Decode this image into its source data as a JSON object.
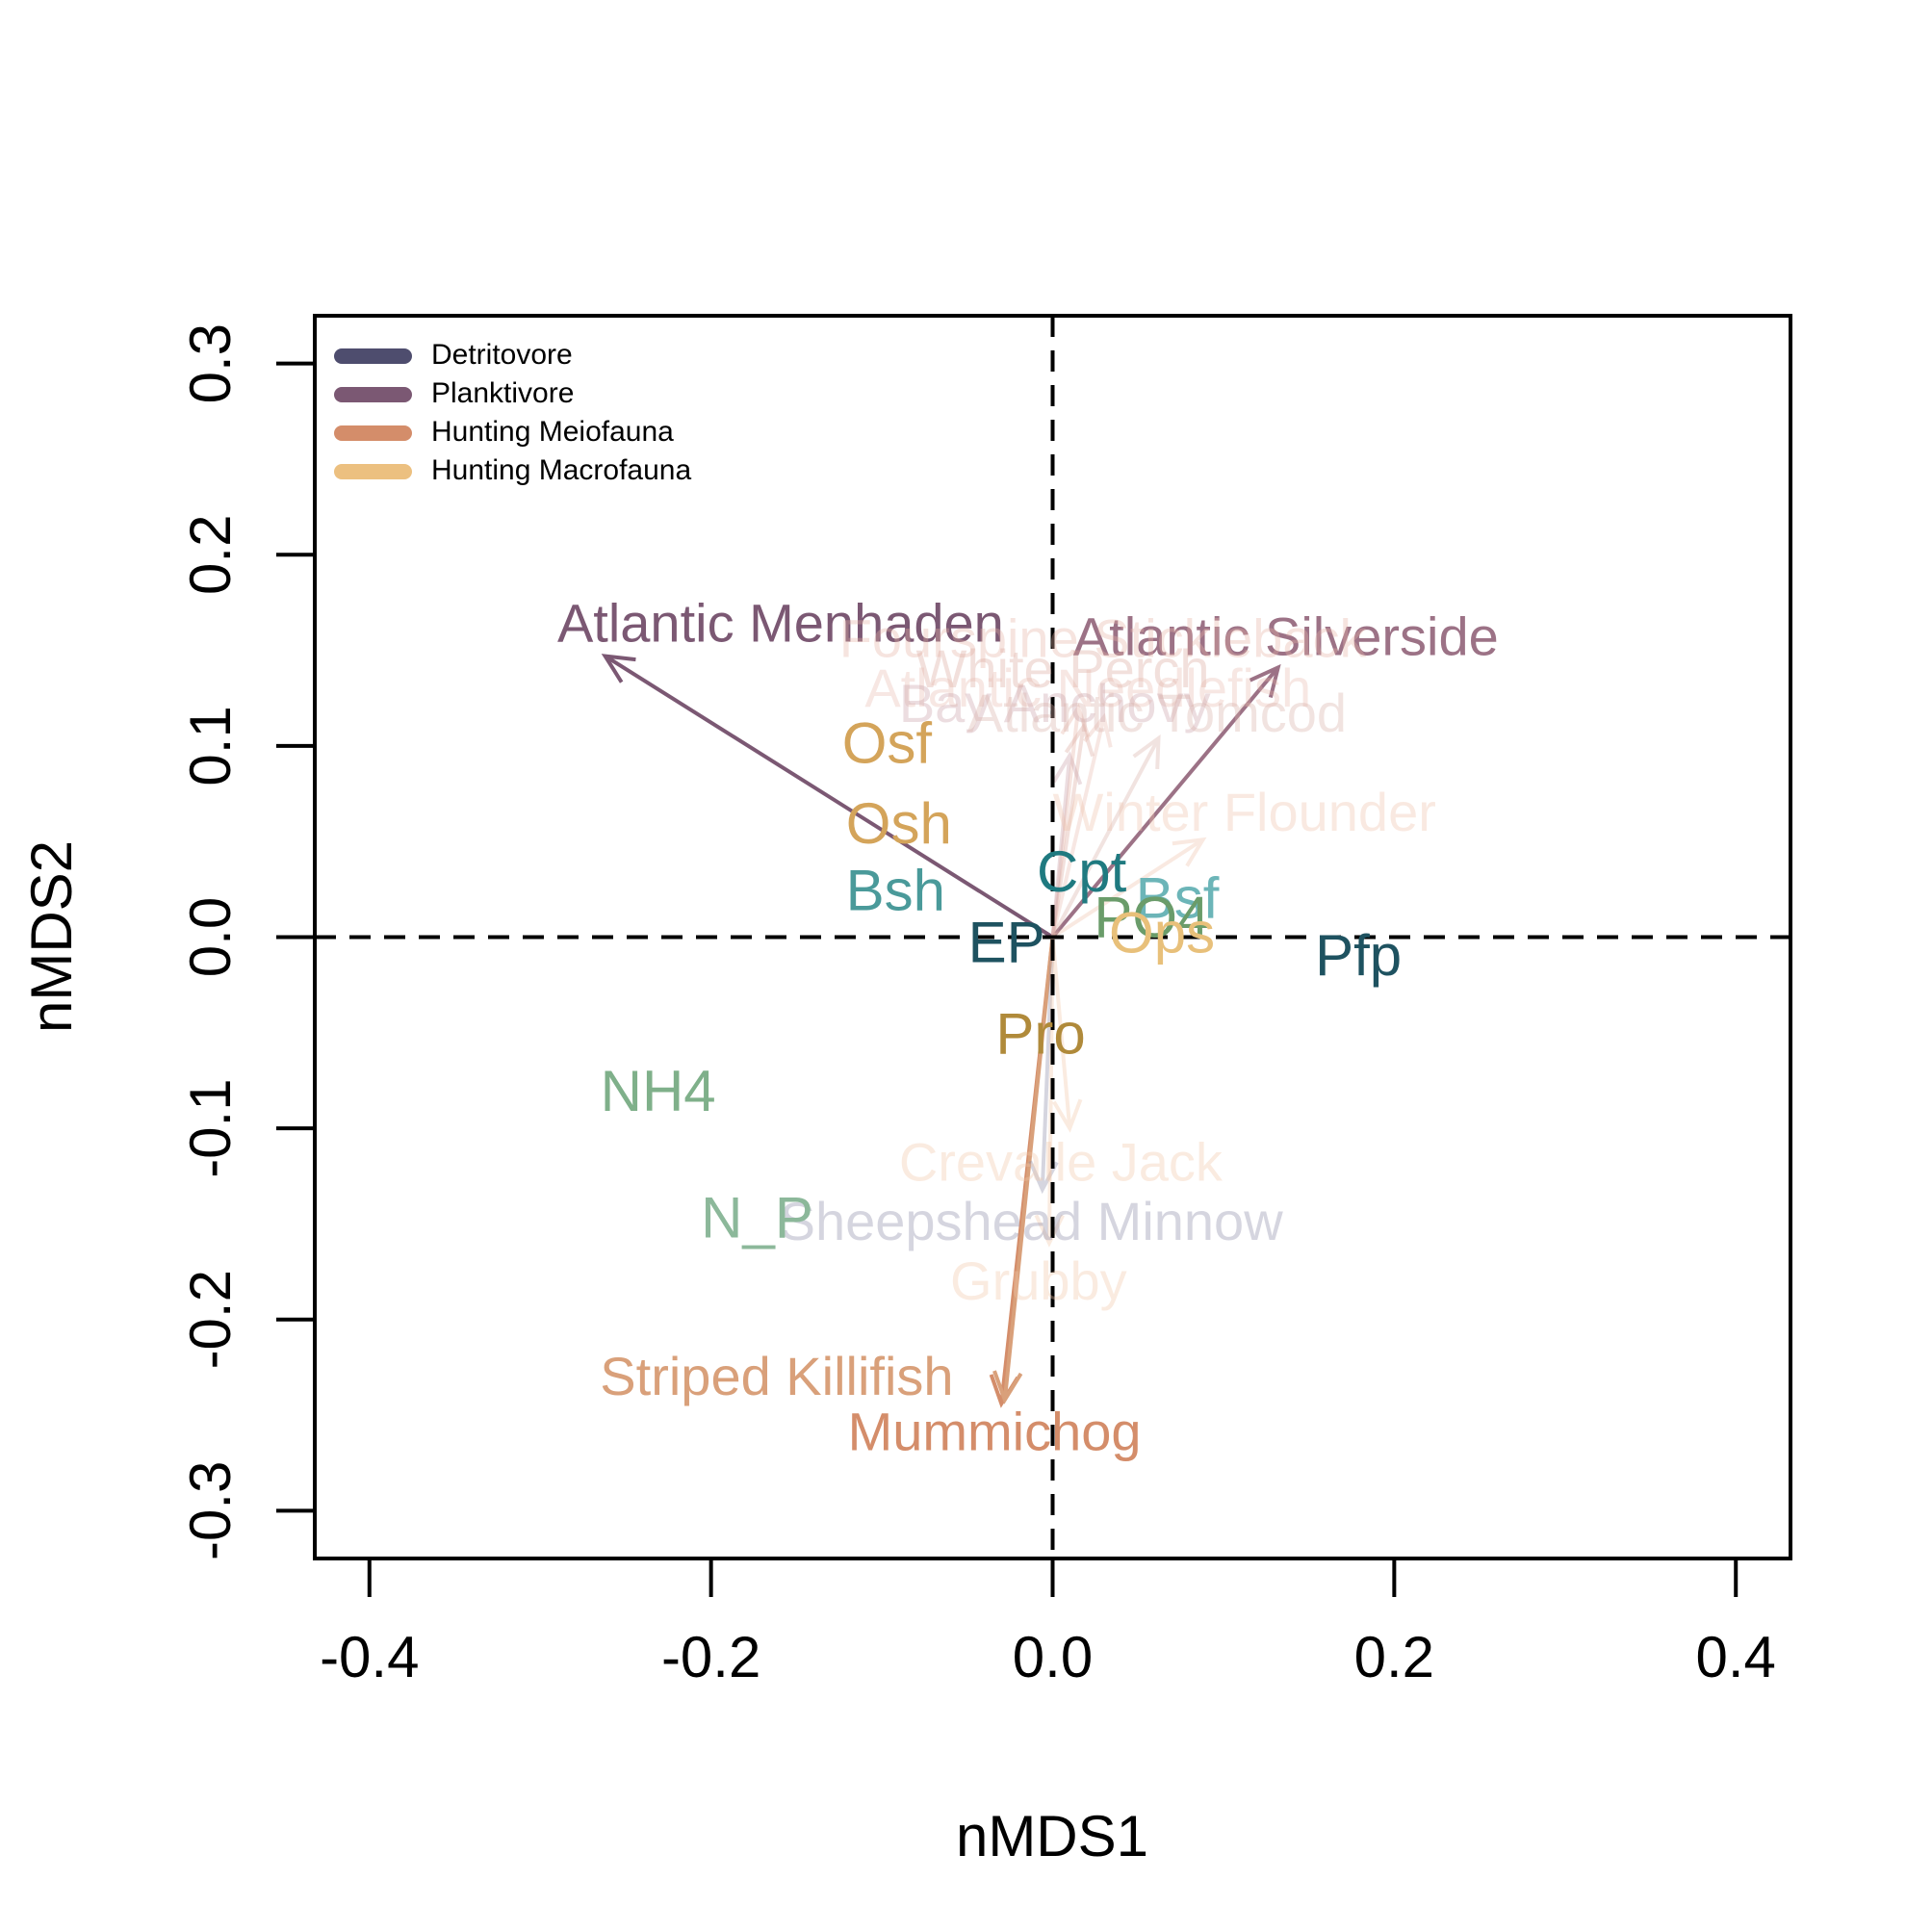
{
  "chart_data": {
    "type": "scatter",
    "xlabel": "nMDS1",
    "ylabel": "nMDS2",
    "xlim": [
      -0.432,
      0.432
    ],
    "ylim": [
      -0.325,
      0.325
    ],
    "x_ticks": [
      -0.4,
      -0.2,
      0.0,
      0.2,
      0.4
    ],
    "x_tick_labels": [
      "-0.4",
      "-0.2",
      "0.0",
      "0.2",
      "0.4"
    ],
    "y_ticks": [
      -0.3,
      -0.2,
      -0.1,
      0.0,
      0.1,
      0.2,
      0.3
    ],
    "y_tick_labels": [
      "-0.3",
      "-0.2",
      "-0.1",
      "0.0",
      "0.1",
      "0.2",
      "0.3"
    ],
    "reference_lines": {
      "x": 0,
      "y": 0,
      "style": "dashed"
    },
    "legend": {
      "position": "top-left",
      "entries": [
        {
          "label": "Detritovore",
          "color": "#4e4d6e"
        },
        {
          "label": "Planktivore",
          "color": "#7b5873"
        },
        {
          "label": "Hunting Meiofauna",
          "color": "#d48d6a"
        },
        {
          "label": "Hunting Macrofauna",
          "color": "#ecc080"
        }
      ]
    },
    "species_vectors": [
      {
        "label": "Atlantic Menhaden",
        "x": -0.262,
        "y": 0.147,
        "color": "#7b5873",
        "alpha": 1.0,
        "label_x": -0.29,
        "label_y": 0.162,
        "label_anchor": "start"
      },
      {
        "label": "Atlantic Silverside",
        "x": 0.132,
        "y": 0.141,
        "color": "#9c7286",
        "alpha": 1.0,
        "label_x": 0.012,
        "label_y": 0.155,
        "label_anchor": "start"
      },
      {
        "label": "Mummichog",
        "x": -0.03,
        "y": -0.244,
        "color": "#d48d6a",
        "alpha": 1.0,
        "label_x": -0.12,
        "label_y": -0.261,
        "label_anchor": "start"
      },
      {
        "label": "Striped Killifish",
        "x": -0.028,
        "y": -0.242,
        "color": "#d9a07a",
        "alpha": 1.0,
        "label_x": -0.265,
        "label_y": -0.232,
        "label_anchor": "start"
      },
      {
        "label": "Fourspine Stickleback",
        "x": 0.015,
        "y": 0.12,
        "color": "#e6b3a6",
        "alpha": 0.35,
        "label_x": -0.125,
        "label_y": 0.154,
        "label_anchor": "start"
      },
      {
        "label": "White Perch",
        "x": 0.018,
        "y": 0.11,
        "color": "#dba89c",
        "alpha": 0.35,
        "label_x": -0.08,
        "label_y": 0.138,
        "label_anchor": "start"
      },
      {
        "label": "Atlantic Needlefish",
        "x": 0.03,
        "y": 0.115,
        "color": "#e6b3a6",
        "alpha": 0.3,
        "label_x": -0.11,
        "label_y": 0.128,
        "label_anchor": "start"
      },
      {
        "label": "Bay Anchovy",
        "x": 0.01,
        "y": 0.095,
        "color": "#c9a0a8",
        "alpha": 0.35,
        "label_x": -0.09,
        "label_y": 0.12,
        "label_anchor": "start"
      },
      {
        "label": "Atlantic Tomcod",
        "x": 0.062,
        "y": 0.104,
        "color": "#d9b0a8",
        "alpha": 0.35,
        "label_x": -0.05,
        "label_y": 0.115,
        "label_anchor": "start"
      },
      {
        "label": "Winter Flounder",
        "x": 0.088,
        "y": 0.051,
        "color": "#efc3aa",
        "alpha": 0.35,
        "label_x": 0.0,
        "label_y": 0.063,
        "label_anchor": "start"
      },
      {
        "label": "Crevalle Jack",
        "x": 0.01,
        "y": -0.1,
        "color": "#f2c7a8",
        "alpha": 0.35,
        "label_x": -0.09,
        "label_y": -0.12,
        "label_anchor": "start"
      },
      {
        "label": "Sheepshead Minnow",
        "x": -0.006,
        "y": -0.132,
        "color": "#8a89a6",
        "alpha": 0.35,
        "label_x": -0.16,
        "label_y": -0.151,
        "label_anchor": "start"
      },
      {
        "label": "Grubby",
        "x": -0.002,
        "y": -0.16,
        "color": "#f2c7a8",
        "alpha": 0.35,
        "label_x": -0.06,
        "label_y": -0.182,
        "label_anchor": "start"
      }
    ],
    "env_labels": [
      {
        "label": "Osf",
        "x": -0.097,
        "y": 0.099,
        "color": "#d4a45a"
      },
      {
        "label": "Osh",
        "x": -0.09,
        "y": 0.057,
        "color": "#d4a45a"
      },
      {
        "label": "Bsh",
        "x": -0.092,
        "y": 0.022,
        "color": "#4a9a9a"
      },
      {
        "label": "EP",
        "x": -0.027,
        "y": -0.005,
        "color": "#1e5260"
      },
      {
        "label": "Cpt",
        "x": 0.017,
        "y": 0.032,
        "color": "#1f7a80"
      },
      {
        "label": "Bsf",
        "x": 0.073,
        "y": 0.018,
        "color": "#6cb5b8"
      },
      {
        "label": "PO4",
        "x": 0.058,
        "y": 0.008,
        "color": "#6a9c6a"
      },
      {
        "label": "Ops",
        "x": 0.064,
        "y": 0.0,
        "color": "#e8c07a"
      },
      {
        "label": "Pfp",
        "x": 0.179,
        "y": -0.012,
        "color": "#1e5260"
      },
      {
        "label": "Pro",
        "x": -0.007,
        "y": -0.053,
        "color": "#b08a3a"
      },
      {
        "label": "NH4",
        "x": -0.231,
        "y": -0.083,
        "color": "#7fb08a"
      },
      {
        "label": "N_P",
        "x": -0.173,
        "y": -0.149,
        "color": "#8cb89a"
      }
    ]
  }
}
